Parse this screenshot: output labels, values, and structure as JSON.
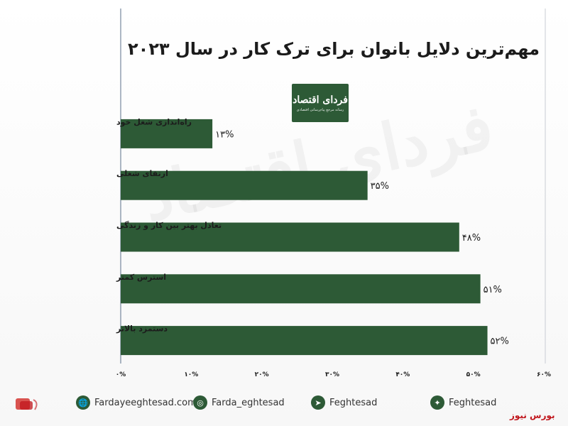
{
  "logo": {
    "main": "فردای اقتصاد",
    "sub": "رسانه مرجع پیام‌رسانی اقتصادی"
  },
  "watermark": "فردای اقتصاد",
  "chart_data": {
    "type": "bar",
    "orientation": "horizontal",
    "title": "مهم‌ترین دلایل بانوان برای ترک کار در سال ۲۰۲۳",
    "categories": [
      "راه‌اندازی شغل خود",
      "ارتقای شغلی",
      "تعادل بهتر بین کار و زندگی",
      "استرس کمتر",
      "دستمزد بالاتر"
    ],
    "values": [
      13,
      35,
      48,
      51,
      52
    ],
    "value_labels": [
      "۱۳%",
      "۳۵%",
      "۴۸%",
      "۵۱%",
      "۵۲%"
    ],
    "xlim": [
      0,
      60
    ],
    "x_ticks": [
      0,
      10,
      20,
      30,
      40,
      50,
      60
    ],
    "x_tick_labels": [
      "۰%",
      "۱۰%",
      "۲۰%",
      "۳۰%",
      "۴۰%",
      "۵۰%",
      "۶۰%"
    ],
    "bar_color": "#2d5a36",
    "grid": false
  },
  "footer": {
    "website": "Fardayeeghtesad.com",
    "instagram": "Farda_eghtesad",
    "telegram": "Feghtesad",
    "twitter": "Feghtesad",
    "bourse_news": "بورس نیوز"
  }
}
